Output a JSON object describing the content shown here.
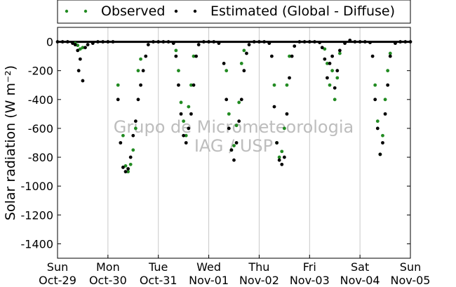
{
  "chart_data": {
    "type": "scatter",
    "ylabel": "Solar radiation (W m⁻²)",
    "ylim": [
      -1500,
      100
    ],
    "yticks": [
      0,
      -200,
      -400,
      -600,
      -800,
      -1000,
      -1200,
      -1400
    ],
    "xlim": [
      0,
      7
    ],
    "x_unit": "days since Sun Oct-29 00:00",
    "xticks": [
      {
        "day": "Sun",
        "date": "Oct-29"
      },
      {
        "day": "Mon",
        "date": "Oct-30"
      },
      {
        "day": "Tue",
        "date": "Oct-31"
      },
      {
        "day": "Wed",
        "date": "Nov-01"
      },
      {
        "day": "Thu",
        "date": "Nov-02"
      },
      {
        "day": "Fri",
        "date": "Nov-03"
      },
      {
        "day": "Sat",
        "date": "Nov-04"
      },
      {
        "day": "Sun",
        "date": "Nov-05"
      }
    ],
    "grid": "vertical",
    "legend_position": "top-center",
    "watermark": [
      "Grupo de Micrometeorologia",
      "IAG / USP"
    ],
    "series": [
      {
        "name": "Observed",
        "color": "#228b22",
        "points": [
          [
            0.35,
            -10
          ],
          [
            0.4,
            -25
          ],
          [
            0.45,
            -50
          ],
          [
            0.5,
            -40
          ],
          [
            1.2,
            -300
          ],
          [
            1.3,
            -650
          ],
          [
            1.35,
            -860
          ],
          [
            1.4,
            -900
          ],
          [
            1.45,
            -850
          ],
          [
            1.5,
            -750
          ],
          [
            1.55,
            -600
          ],
          [
            1.6,
            -200
          ],
          [
            1.65,
            -120
          ],
          [
            2.35,
            -60
          ],
          [
            2.4,
            -200
          ],
          [
            2.45,
            -420
          ],
          [
            2.5,
            -550
          ],
          [
            2.55,
            -650
          ],
          [
            2.6,
            -450
          ],
          [
            2.65,
            -300
          ],
          [
            2.7,
            -100
          ],
          [
            3.35,
            -200
          ],
          [
            3.4,
            -500
          ],
          [
            3.45,
            -750
          ],
          [
            3.5,
            -720
          ],
          [
            3.55,
            -580
          ],
          [
            3.6,
            -420
          ],
          [
            3.65,
            -150
          ],
          [
            3.7,
            -60
          ],
          [
            4.3,
            -300
          ],
          [
            4.35,
            -700
          ],
          [
            4.4,
            -800
          ],
          [
            4.45,
            -760
          ],
          [
            4.5,
            -600
          ],
          [
            4.55,
            -300
          ],
          [
            4.6,
            -100
          ],
          [
            5.3,
            -50
          ],
          [
            5.35,
            -150
          ],
          [
            5.4,
            -300
          ],
          [
            5.45,
            -200
          ],
          [
            5.5,
            -400
          ],
          [
            5.55,
            -250
          ],
          [
            5.6,
            -80
          ],
          [
            6.3,
            -300
          ],
          [
            6.35,
            -550
          ],
          [
            6.4,
            -780
          ],
          [
            6.45,
            -650
          ],
          [
            6.5,
            -400
          ],
          [
            6.55,
            -200
          ],
          [
            6.6,
            -80
          ]
        ]
      },
      {
        "name": "Estimated (Global - Diffuse)",
        "color": "#000000",
        "points": [
          [
            0.0,
            0
          ],
          [
            0.1,
            0
          ],
          [
            0.2,
            0
          ],
          [
            0.3,
            -10
          ],
          [
            0.35,
            -20
          ],
          [
            0.4,
            -60
          ],
          [
            0.42,
            -200
          ],
          [
            0.45,
            -120
          ],
          [
            0.5,
            -270
          ],
          [
            0.55,
            -40
          ],
          [
            0.6,
            -20
          ],
          [
            0.7,
            -10
          ],
          [
            0.8,
            0
          ],
          [
            0.9,
            0
          ],
          [
            1.0,
            0
          ],
          [
            1.1,
            0
          ],
          [
            1.2,
            -400
          ],
          [
            1.25,
            -700
          ],
          [
            1.3,
            -870
          ],
          [
            1.35,
            -900
          ],
          [
            1.4,
            -880
          ],
          [
            1.45,
            -800
          ],
          [
            1.5,
            -650
          ],
          [
            1.55,
            -550
          ],
          [
            1.6,
            -400
          ],
          [
            1.65,
            -300
          ],
          [
            1.7,
            -200
          ],
          [
            1.75,
            -100
          ],
          [
            1.8,
            -20
          ],
          [
            1.9,
            0
          ],
          [
            2.0,
            0
          ],
          [
            2.1,
            0
          ],
          [
            2.2,
            0
          ],
          [
            2.3,
            -10
          ],
          [
            2.35,
            -100
          ],
          [
            2.4,
            -300
          ],
          [
            2.45,
            -500
          ],
          [
            2.5,
            -650
          ],
          [
            2.55,
            -700
          ],
          [
            2.6,
            -600
          ],
          [
            2.65,
            -500
          ],
          [
            2.7,
            -300
          ],
          [
            2.75,
            -100
          ],
          [
            2.8,
            -20
          ],
          [
            2.9,
            0
          ],
          [
            3.0,
            0
          ],
          [
            3.1,
            0
          ],
          [
            3.2,
            -10
          ],
          [
            3.3,
            -150
          ],
          [
            3.35,
            -400
          ],
          [
            3.4,
            -600
          ],
          [
            3.45,
            -750
          ],
          [
            3.5,
            -820
          ],
          [
            3.55,
            -700
          ],
          [
            3.6,
            -550
          ],
          [
            3.65,
            -400
          ],
          [
            3.7,
            -200
          ],
          [
            3.75,
            -80
          ],
          [
            3.8,
            -20
          ],
          [
            3.9,
            0
          ],
          [
            4.0,
            0
          ],
          [
            4.1,
            0
          ],
          [
            4.2,
            -10
          ],
          [
            4.25,
            -100
          ],
          [
            4.3,
            -450
          ],
          [
            4.35,
            -700
          ],
          [
            4.4,
            -820
          ],
          [
            4.45,
            -850
          ],
          [
            4.5,
            -800
          ],
          [
            4.55,
            -500
          ],
          [
            4.6,
            -250
          ],
          [
            4.65,
            -100
          ],
          [
            4.7,
            -30
          ],
          [
            4.8,
            0
          ],
          [
            4.9,
            0
          ],
          [
            5.0,
            0
          ],
          [
            5.1,
            0
          ],
          [
            5.2,
            -5
          ],
          [
            5.25,
            -40
          ],
          [
            5.3,
            -120
          ],
          [
            5.35,
            -250
          ],
          [
            5.4,
            -150
          ],
          [
            5.45,
            -100
          ],
          [
            5.5,
            -320
          ],
          [
            5.55,
            -200
          ],
          [
            5.6,
            -60
          ],
          [
            5.7,
            -10
          ],
          [
            5.8,
            10
          ],
          [
            5.9,
            0
          ],
          [
            6.0,
            0
          ],
          [
            6.1,
            0
          ],
          [
            6.2,
            -5
          ],
          [
            6.25,
            -100
          ],
          [
            6.3,
            -400
          ],
          [
            6.35,
            -600
          ],
          [
            6.4,
            -780
          ],
          [
            6.45,
            -700
          ],
          [
            6.5,
            -500
          ],
          [
            6.55,
            -300
          ],
          [
            6.6,
            -100
          ],
          [
            6.7,
            -10
          ],
          [
            6.8,
            0
          ],
          [
            6.9,
            0
          ],
          [
            7.0,
            0
          ]
        ]
      }
    ]
  }
}
